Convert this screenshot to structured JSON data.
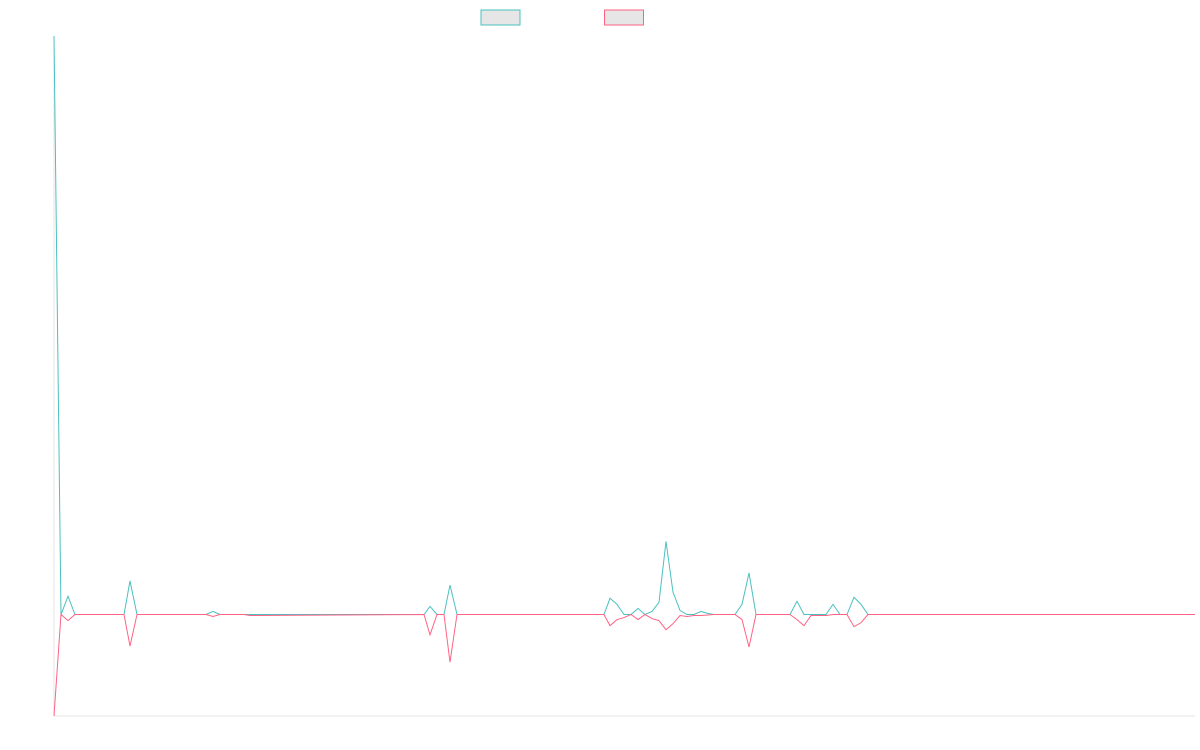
{
  "chart_data": {
    "type": "line",
    "xlim": [
      0,
      1141
    ],
    "ylim": [
      -10,
      57
    ],
    "series": [
      {
        "color": "#4bc0c0",
        "x": [
          0,
          7,
          14,
          21,
          70,
          76,
          83,
          152,
          159,
          166,
          370,
          376,
          383,
          390,
          396,
          403,
          550,
          556,
          563,
          570,
          577,
          584,
          591,
          598,
          605,
          612,
          619,
          626,
          633,
          640,
          647,
          654,
          660,
          674,
          681,
          688,
          695,
          702,
          736,
          743,
          750,
          772,
          779,
          786,
          793,
          800,
          807,
          814,
          1141
        ],
        "values": [
          57,
          0,
          1.8,
          0,
          0,
          3.3,
          0,
          0,
          0.3,
          0,
          0,
          0.8,
          0,
          0,
          2.9,
          0,
          0,
          1.6,
          1.0,
          0,
          0,
          0.6,
          0,
          0.3,
          1.2,
          7.2,
          2.2,
          0.4,
          0,
          0,
          0.3,
          0.1,
          0,
          0,
          0,
          1.0,
          4.1,
          0,
          0,
          1.3,
          0,
          0,
          1.0,
          0,
          0,
          1.7,
          1.0,
          0,
          0
        ]
      },
      {
        "color": "#ff6384",
        "x": [
          0,
          7,
          14,
          21,
          70,
          76,
          83,
          152,
          159,
          166,
          190,
          196,
          370,
          376,
          383,
          390,
          396,
          403,
          550,
          556,
          563,
          570,
          577,
          584,
          591,
          598,
          605,
          612,
          619,
          626,
          633,
          640,
          647,
          660,
          681,
          688,
          695,
          702,
          736,
          743,
          750,
          757,
          772,
          779,
          793,
          800,
          807,
          814,
          1141
        ],
        "values": [
          -10,
          0,
          -0.6,
          0,
          0,
          -3.1,
          0,
          0,
          -0.2,
          0,
          0,
          -0.1,
          0,
          -2.0,
          0,
          0,
          -4.7,
          0,
          0,
          -1.1,
          -0.5,
          -0.3,
          0,
          -0.5,
          0,
          -0.4,
          -0.6,
          -1.5,
          -0.9,
          -0.1,
          -0.2,
          -0.1,
          -0.1,
          0,
          0,
          -0.5,
          -3.2,
          0,
          0,
          -0.5,
          -1.1,
          -0.1,
          -0.1,
          0,
          0,
          -1.2,
          -0.8,
          0,
          0
        ]
      }
    ]
  }
}
